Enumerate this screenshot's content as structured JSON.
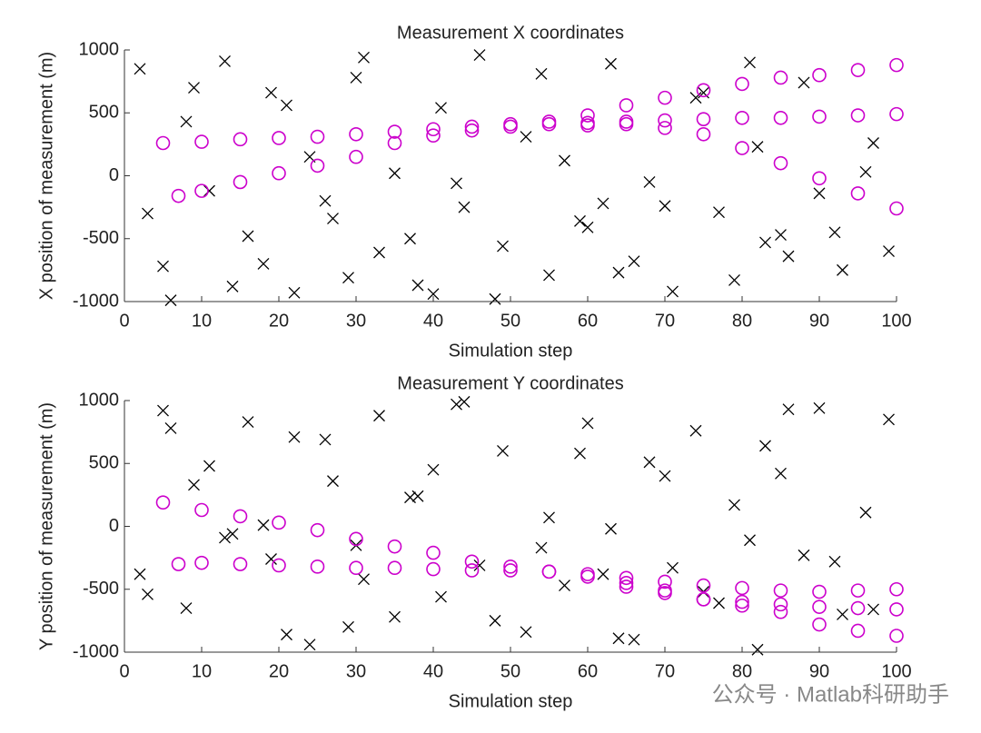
{
  "chart_data": [
    {
      "type": "scatter",
      "title": "Measurement X coordinates",
      "x_label": "Simulation step",
      "y_label": "X position of measurement (m)",
      "xlim": [
        0,
        100
      ],
      "ylim": [
        -1000,
        1000
      ],
      "xticks": [
        0,
        10,
        20,
        30,
        40,
        50,
        60,
        70,
        80,
        90,
        100
      ],
      "yticks": [
        -1000,
        -500,
        0,
        500,
        1000
      ],
      "grid": false,
      "series": [
        {
          "marker": "x",
          "color": "#000000",
          "x": [
            2,
            5,
            8,
            11,
            13,
            16,
            19,
            22,
            24,
            27,
            30,
            33,
            35,
            38,
            41,
            44,
            46,
            49,
            52,
            55,
            57,
            60,
            63,
            66,
            68,
            71,
            74,
            77,
            79,
            82,
            85,
            88,
            90,
            93,
            96,
            99,
            3,
            9,
            14,
            21,
            26,
            31,
            37,
            43,
            48,
            54,
            59,
            64,
            70,
            75,
            81,
            86,
            92,
            97,
            6,
            18,
            29,
            40,
            62,
            83
          ],
          "values": [
            850,
            -720,
            430,
            -120,
            910,
            -480,
            660,
            -930,
            150,
            -340,
            780,
            -610,
            20,
            -870,
            540,
            -250,
            960,
            -560,
            310,
            -790,
            120,
            -410,
            890,
            -680,
            -50,
            -920,
            620,
            -290,
            -830,
            230,
            -470,
            740,
            -140,
            -750,
            30,
            -600,
            -300,
            700,
            -880,
            560,
            -200,
            940,
            -500,
            -60,
            -980,
            810,
            -360,
            -770,
            -240,
            660,
            900,
            -640,
            -450,
            260,
            -990,
            -700,
            -810,
            -940,
            -220,
            -530
          ]
        },
        {
          "marker": "o",
          "color": "#cc00cc",
          "x": [
            5,
            10,
            15,
            20,
            25,
            30,
            35,
            40,
            45,
            50,
            55,
            60,
            65,
            70,
            75,
            80,
            85,
            90,
            95,
            100
          ],
          "values": [
            260,
            270,
            290,
            300,
            310,
            330,
            350,
            370,
            390,
            410,
            430,
            480,
            560,
            620,
            680,
            730,
            780,
            800,
            840,
            880
          ]
        },
        {
          "marker": "o",
          "color": "#cc00cc",
          "x": [
            7,
            10,
            15,
            20,
            25,
            30,
            35,
            40,
            45,
            50,
            55,
            60,
            65,
            70,
            75,
            80,
            85,
            90,
            95,
            100
          ],
          "values": [
            -160,
            -120,
            -50,
            20,
            80,
            150,
            260,
            320,
            360,
            390,
            410,
            420,
            430,
            440,
            450,
            460,
            460,
            470,
            480,
            490
          ]
        },
        {
          "marker": "o",
          "color": "#cc00cc",
          "x": [
            60,
            65,
            70,
            75,
            80,
            85,
            90,
            95,
            100
          ],
          "values": [
            400,
            410,
            380,
            330,
            220,
            100,
            -20,
            -140,
            -260
          ]
        }
      ]
    },
    {
      "type": "scatter",
      "title": "Measurement Y coordinates",
      "x_label": "Simulation step",
      "y_label": "Y position of measurement (m)",
      "xlim": [
        0,
        100
      ],
      "ylim": [
        -1000,
        1000
      ],
      "xticks": [
        0,
        10,
        20,
        30,
        40,
        50,
        60,
        70,
        80,
        90,
        100
      ],
      "yticks": [
        -1000,
        -500,
        0,
        500,
        1000
      ],
      "grid": false,
      "series": [
        {
          "marker": "x",
          "color": "#000000",
          "x": [
            2,
            5,
            8,
            11,
            13,
            16,
            19,
            22,
            24,
            27,
            30,
            33,
            35,
            38,
            41,
            44,
            46,
            49,
            52,
            55,
            57,
            60,
            63,
            66,
            68,
            71,
            74,
            77,
            79,
            82,
            85,
            88,
            90,
            93,
            96,
            99,
            3,
            9,
            14,
            21,
            26,
            31,
            37,
            43,
            48,
            54,
            59,
            64,
            70,
            75,
            81,
            86,
            92,
            97,
            6,
            18,
            29,
            40,
            62,
            83
          ],
          "values": [
            -380,
            920,
            -650,
            480,
            -90,
            830,
            -260,
            710,
            -940,
            360,
            -150,
            880,
            -720,
            240,
            -560,
            990,
            -310,
            600,
            -840,
            70,
            -470,
            820,
            -20,
            -900,
            510,
            -330,
            760,
            -610,
            170,
            -980,
            420,
            -230,
            940,
            -700,
            110,
            850,
            -540,
            330,
            -60,
            -860,
            690,
            -420,
            230,
            970,
            -750,
            -170,
            580,
            -890,
            400,
            -520,
            -110,
            930,
            -280,
            -660,
            780,
            10,
            -800,
            450,
            -380,
            640
          ]
        },
        {
          "marker": "o",
          "color": "#cc00cc",
          "x": [
            5,
            10,
            15,
            20,
            25,
            30,
            35,
            40,
            45,
            50,
            55,
            60,
            65,
            70,
            75,
            80,
            85,
            90,
            95,
            100
          ],
          "values": [
            190,
            130,
            80,
            30,
            -30,
            -100,
            -160,
            -210,
            -280,
            -320,
            -360,
            -400,
            -450,
            -510,
            -580,
            -630,
            -680,
            -780,
            -830,
            -870
          ]
        },
        {
          "marker": "o",
          "color": "#cc00cc",
          "x": [
            7,
            10,
            15,
            20,
            25,
            30,
            35,
            40,
            45,
            50,
            55,
            60,
            65,
            70,
            75,
            80,
            85,
            90,
            95,
            100
          ],
          "values": [
            -300,
            -290,
            -300,
            -310,
            -320,
            -330,
            -330,
            -340,
            -350,
            -350,
            -360,
            -380,
            -410,
            -440,
            -470,
            -490,
            -510,
            -520,
            -510,
            -500
          ]
        },
        {
          "marker": "o",
          "color": "#cc00cc",
          "x": [
            65,
            70,
            75,
            80,
            85,
            90,
            95,
            100
          ],
          "values": [
            -480,
            -530,
            -580,
            -600,
            -620,
            -640,
            -650,
            -660
          ]
        }
      ]
    }
  ],
  "watermark": "公众号 · Matlab科研助手"
}
